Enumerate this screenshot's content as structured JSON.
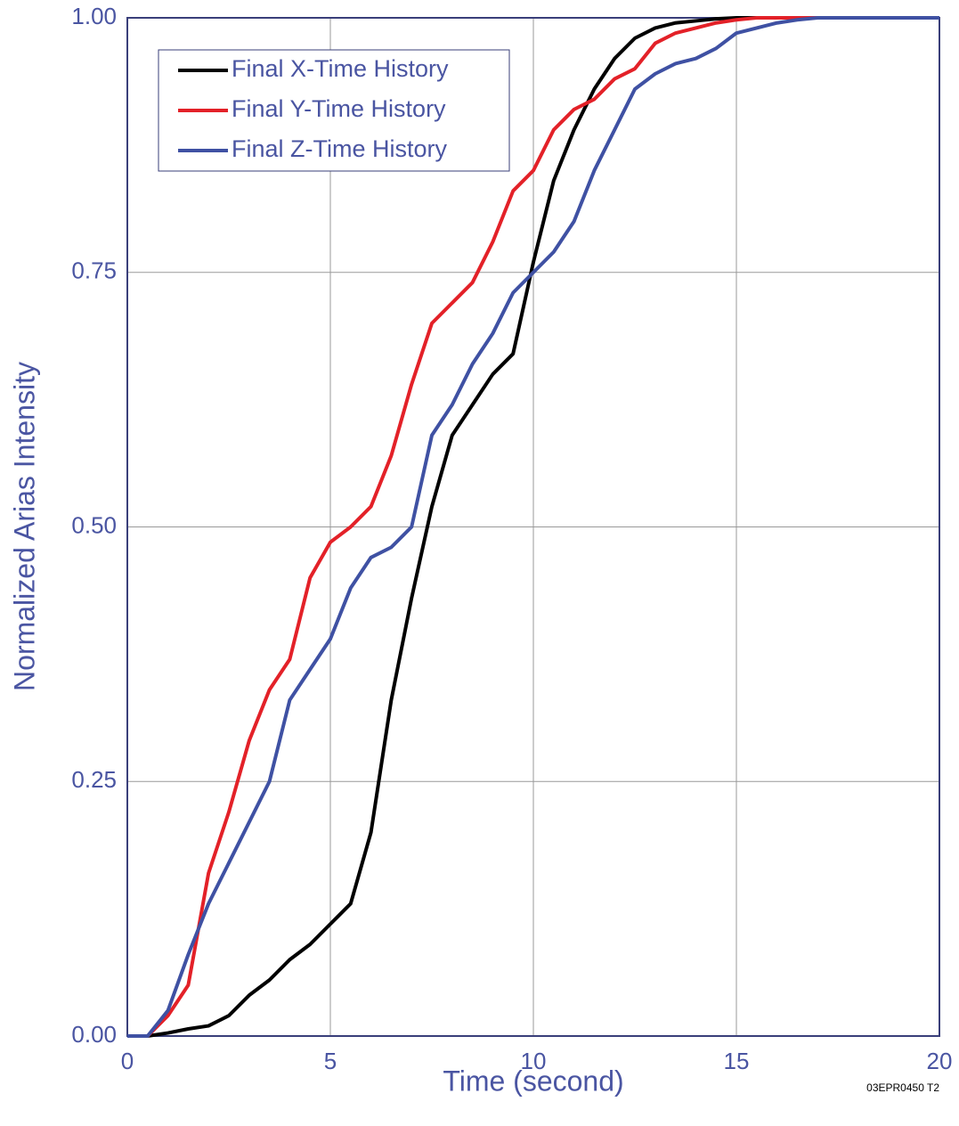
{
  "chart_data": {
    "type": "line",
    "xlabel": "Time (second)",
    "ylabel": "Normalized Arias Intensity",
    "annotation": "03EPR0450 T2",
    "x": [
      0,
      0.5,
      1,
      1.5,
      2,
      2.5,
      3,
      3.5,
      4,
      4.5,
      5,
      5.5,
      6,
      6.5,
      7,
      7.5,
      8,
      8.5,
      9,
      9.5,
      10,
      10.5,
      11,
      11.5,
      12,
      12.5,
      13,
      13.5,
      14,
      14.5,
      15,
      15.5,
      16,
      16.5,
      17,
      17.5,
      18,
      18.5,
      19,
      19.5,
      20
    ],
    "series": [
      {
        "name": "Final X-Time History",
        "color": "#000000",
        "values": [
          0,
          0,
          0.003,
          0.007,
          0.01,
          0.02,
          0.04,
          0.055,
          0.075,
          0.09,
          0.11,
          0.13,
          0.2,
          0.33,
          0.43,
          0.52,
          0.59,
          0.62,
          0.65,
          0.67,
          0.76,
          0.84,
          0.89,
          0.93,
          0.96,
          0.98,
          0.99,
          0.995,
          0.997,
          0.999,
          1,
          1,
          1,
          1,
          1,
          1,
          1,
          1,
          1,
          1,
          1
        ]
      },
      {
        "name": "Final Y-Time History",
        "color": "#e32128",
        "values": [
          0,
          0,
          0.02,
          0.05,
          0.16,
          0.22,
          0.29,
          0.34,
          0.37,
          0.45,
          0.485,
          0.5,
          0.52,
          0.57,
          0.64,
          0.7,
          0.72,
          0.74,
          0.78,
          0.83,
          0.85,
          0.89,
          0.91,
          0.92,
          0.94,
          0.95,
          0.975,
          0.985,
          0.99,
          0.995,
          0.998,
          1,
          1,
          1,
          1,
          1,
          1,
          1,
          1,
          1,
          1
        ]
      },
      {
        "name": "Final Z-Time History",
        "color": "#3f51a3",
        "values": [
          0,
          0,
          0.025,
          0.08,
          0.13,
          0.17,
          0.21,
          0.25,
          0.33,
          0.36,
          0.39,
          0.44,
          0.47,
          0.48,
          0.5,
          0.59,
          0.62,
          0.66,
          0.69,
          0.73,
          0.75,
          0.77,
          0.8,
          0.85,
          0.89,
          0.93,
          0.945,
          0.955,
          0.96,
          0.97,
          0.985,
          0.99,
          0.995,
          0.998,
          1,
          1,
          1,
          1,
          1,
          1,
          1
        ]
      }
    ],
    "xlim": [
      0,
      20
    ],
    "xticks": [
      0,
      5,
      10,
      15,
      20
    ],
    "ylim": [
      0,
      1
    ],
    "yticks": [
      {
        "value": 0,
        "label": "0.00"
      },
      {
        "value": 0.25,
        "label": "0.25"
      },
      {
        "value": 0.5,
        "label": "0.50"
      },
      {
        "value": 0.75,
        "label": "0.75"
      },
      {
        "value": 1,
        "label": "1.00"
      }
    ],
    "grid": true,
    "legend": "upper left"
  }
}
